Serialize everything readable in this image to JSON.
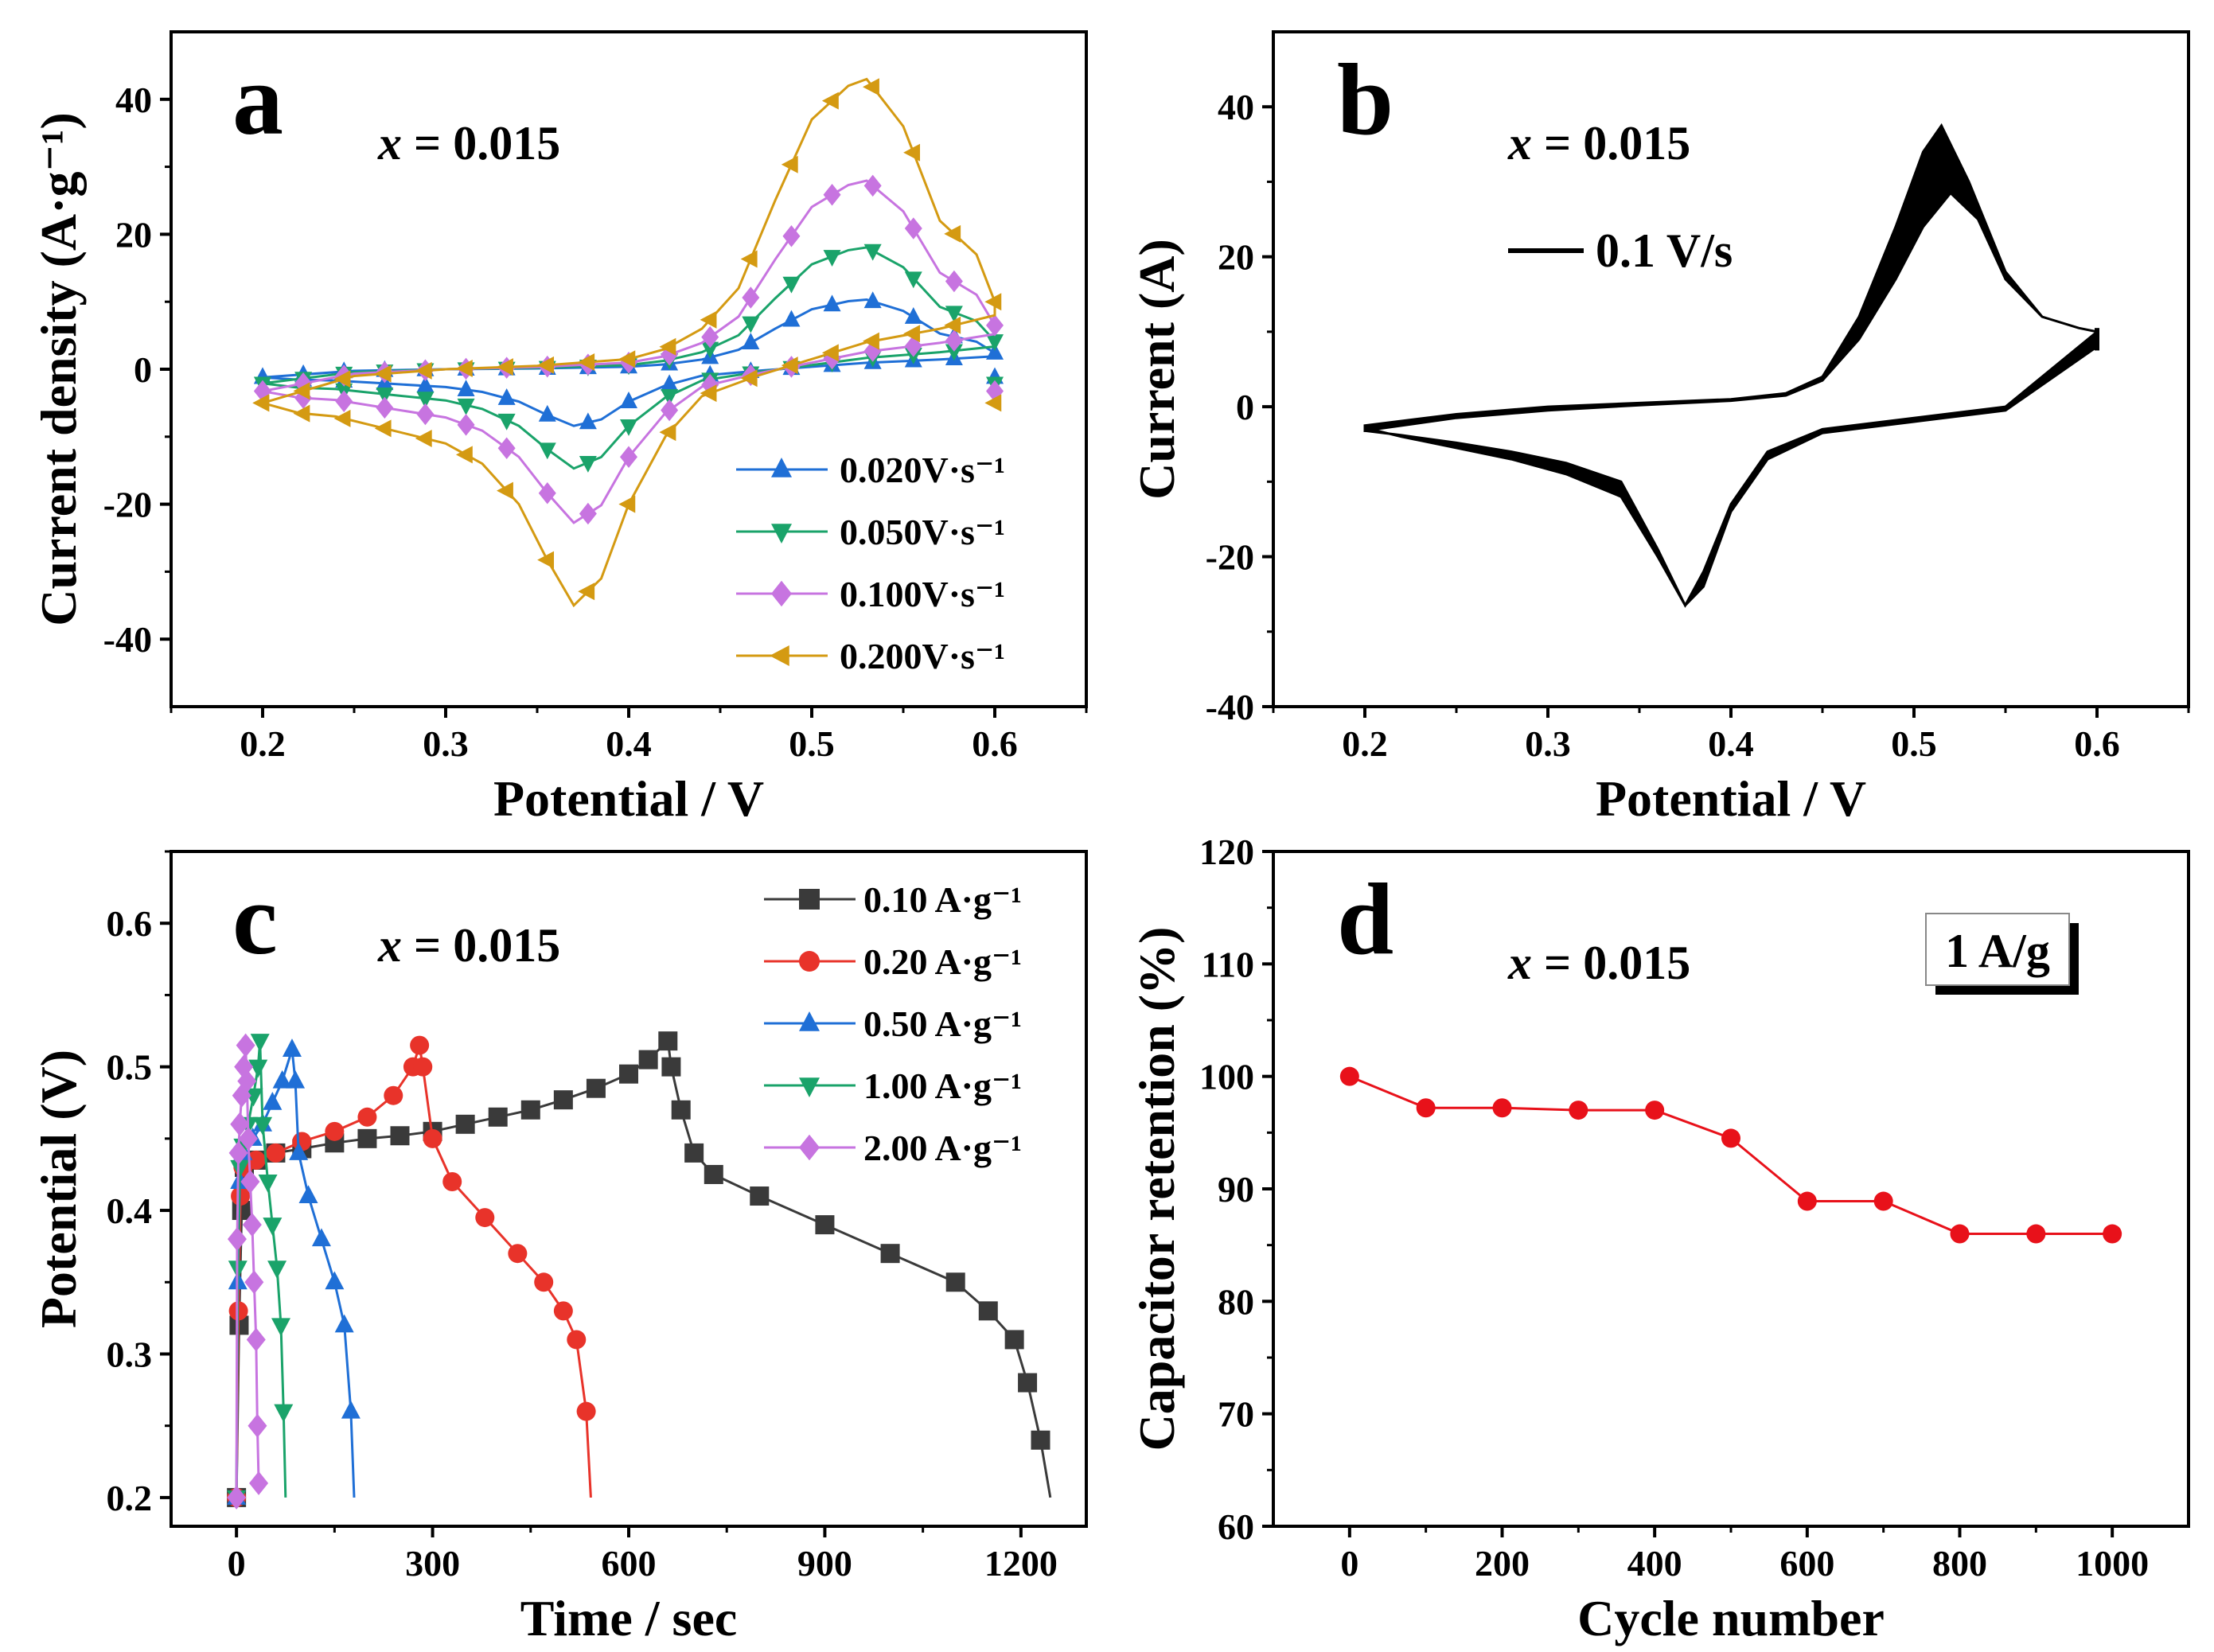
{
  "figure": "four-panel electrochemistry figure",
  "chart_data": [
    {
      "panel": "a",
      "type": "line",
      "annotation": "x = 0.015",
      "annotation_var": "x",
      "annotation_rest": " = 0.015",
      "xlabel": "Potential / V",
      "ylabel": "Current density (A·g⁻¹)",
      "xlim": [
        0.15,
        0.65
      ],
      "ylim": [
        -50,
        50
      ],
      "xticks": [
        0.2,
        0.3,
        0.4,
        0.5,
        0.6
      ],
      "yticks": [
        -40,
        -20,
        0,
        20,
        40
      ],
      "legend_position": "bottom-right",
      "series": [
        {
          "name": "0.020V·s⁻¹",
          "color": "#1f6fd6",
          "marker": "triangle-up",
          "scale": 0.24
        },
        {
          "name": "0.050V·s⁻¹",
          "color": "#1aa36a",
          "marker": "triangle-down",
          "scale": 0.42
        },
        {
          "name": "0.100V·s⁻¹",
          "color": "#c774e0",
          "marker": "diamond",
          "scale": 0.65
        },
        {
          "name": "0.200V·s⁻¹",
          "color": "#d49a12",
          "marker": "triangle-left",
          "scale": 1.0
        }
      ],
      "reference_loop": {
        "anodic": {
          "x": [
            0.2,
            0.25,
            0.3,
            0.35,
            0.4,
            0.42,
            0.44,
            0.46,
            0.48,
            0.5,
            0.52,
            0.53,
            0.55,
            0.57,
            0.59,
            0.6
          ],
          "y": [
            -5,
            -1,
            0,
            0.5,
            1.5,
            3,
            6,
            12,
            25,
            37,
            42,
            43,
            36,
            22,
            17,
            10
          ]
        },
        "cathodic": {
          "x": [
            0.6,
            0.57,
            0.53,
            0.5,
            0.47,
            0.44,
            0.42,
            0.4,
            0.385,
            0.37,
            0.355,
            0.34,
            0.32,
            0.3,
            0.27,
            0.24,
            0.22,
            0.2
          ],
          "y": [
            8,
            6,
            4,
            1.5,
            -1,
            -4,
            -10,
            -20,
            -31,
            -35,
            -28,
            -20,
            -14,
            -11,
            -9,
            -7,
            -6.5,
            -5
          ]
        }
      }
    },
    {
      "panel": "b",
      "type": "line",
      "annotation": "x = 0.015",
      "annotation_var": "x",
      "annotation_rest": " = 0.015",
      "legend_label": "0.1 V/s",
      "xlabel": "Potential / V",
      "ylabel": "Current (A)",
      "xlim": [
        0.15,
        0.65
      ],
      "ylim": [
        -40,
        50
      ],
      "xticks": [
        0.2,
        0.3,
        0.4,
        0.5,
        0.6
      ],
      "yticks": [
        -40,
        -20,
        0,
        20,
        40
      ],
      "series": [
        {
          "name": "upper envelope",
          "anodic_x": [
            0.2,
            0.25,
            0.3,
            0.35,
            0.4,
            0.43,
            0.45,
            0.47,
            0.49,
            0.505,
            0.515,
            0.53,
            0.55,
            0.57,
            0.59,
            0.6
          ],
          "anodic_y": [
            -2.5,
            -1,
            0,
            0.5,
            1,
            1.8,
            4,
            12,
            24,
            34,
            37.5,
            30,
            18,
            12,
            10.5,
            10
          ],
          "cathodic_x": [
            0.6,
            0.55,
            0.5,
            0.45,
            0.42,
            0.4,
            0.385,
            0.375,
            0.36,
            0.34,
            0.31,
            0.28,
            0.25,
            0.22,
            0.2
          ],
          "cathodic_y": [
            10,
            0,
            -1.5,
            -3,
            -6,
            -13,
            -22,
            -26.5,
            -20,
            -12,
            -9,
            -7,
            -5.5,
            -4,
            -2.8
          ]
        },
        {
          "name": "lower envelope",
          "anodic_x": [
            0.2,
            0.25,
            0.3,
            0.35,
            0.4,
            0.43,
            0.45,
            0.47,
            0.49,
            0.505,
            0.52,
            0.535,
            0.55,
            0.57,
            0.59,
            0.6
          ],
          "anodic_y": [
            -3.2,
            -1.5,
            -0.5,
            0.2,
            0.8,
            1.5,
            3.5,
            9,
            17,
            24,
            28.5,
            25,
            17,
            12,
            10.5,
            10
          ],
          "cathodic_x": [
            0.6,
            0.55,
            0.5,
            0.45,
            0.42,
            0.4,
            0.385,
            0.375,
            0.36,
            0.34,
            0.31,
            0.28,
            0.25,
            0.22,
            0.2
          ],
          "cathodic_y": [
            8,
            -0.5,
            -2,
            -3.5,
            -7,
            -14,
            -24,
            -26.5,
            -19,
            -10,
            -7.5,
            -6,
            -4.8,
            -3.8,
            -3.2
          ]
        }
      ]
    },
    {
      "panel": "c",
      "type": "line",
      "annotation": "x = 0.015",
      "annotation_var": "x",
      "annotation_rest": " = 0.015",
      "xlabel": "Time / sec",
      "ylabel": "Potential (V)",
      "xlim": [
        -100,
        1300
      ],
      "ylim": [
        0.18,
        0.65
      ],
      "xticks": [
        0,
        300,
        600,
        900,
        1200
      ],
      "yticks": [
        0.2,
        0.3,
        0.4,
        0.5,
        0.6
      ],
      "legend_position": "top-right",
      "series": [
        {
          "name": "0.10 A·g⁻¹",
          "color": "#3a3a3a",
          "marker": "square",
          "x": [
            0,
            4,
            8,
            12,
            30,
            60,
            100,
            150,
            200,
            250,
            300,
            350,
            400,
            450,
            500,
            550,
            600,
            630,
            660,
            665,
            680,
            700,
            730,
            800,
            900,
            1000,
            1100,
            1150,
            1190,
            1210,
            1230,
            1245
          ],
          "y": [
            0.2,
            0.32,
            0.4,
            0.43,
            0.435,
            0.44,
            0.443,
            0.447,
            0.45,
            0.452,
            0.455,
            0.46,
            0.465,
            0.47,
            0.477,
            0.485,
            0.495,
            0.505,
            0.518,
            0.5,
            0.47,
            0.44,
            0.425,
            0.41,
            0.39,
            0.37,
            0.35,
            0.33,
            0.31,
            0.28,
            0.24,
            0.2
          ]
        },
        {
          "name": "0.20 A·g⁻¹",
          "color": "#e8332a",
          "marker": "circle",
          "x": [
            0,
            3,
            6,
            10,
            30,
            60,
            100,
            150,
            200,
            240,
            270,
            280,
            285,
            300,
            330,
            380,
            430,
            470,
            500,
            520,
            535,
            542
          ],
          "y": [
            0.2,
            0.33,
            0.41,
            0.43,
            0.435,
            0.44,
            0.448,
            0.455,
            0.465,
            0.48,
            0.5,
            0.515,
            0.5,
            0.45,
            0.42,
            0.395,
            0.37,
            0.35,
            0.33,
            0.31,
            0.26,
            0.2
          ]
        },
        {
          "name": "0.50 A·g⁻¹",
          "color": "#1f6fd6",
          "marker": "triangle-up",
          "x": [
            0,
            2,
            5,
            10,
            25,
            40,
            55,
            70,
            85,
            90,
            95,
            110,
            130,
            150,
            165,
            175,
            180
          ],
          "y": [
            0.2,
            0.35,
            0.42,
            0.44,
            0.45,
            0.46,
            0.475,
            0.49,
            0.512,
            0.49,
            0.44,
            0.41,
            0.38,
            0.35,
            0.32,
            0.26,
            0.2
          ]
        },
        {
          "name": "1.00 A·g⁻¹",
          "color": "#1aa36a",
          "marker": "triangle-down",
          "x": [
            0,
            2,
            5,
            10,
            18,
            26,
            33,
            36,
            40,
            48,
            55,
            62,
            68,
            72,
            75
          ],
          "y": [
            0.2,
            0.36,
            0.43,
            0.445,
            0.46,
            0.48,
            0.5,
            0.518,
            0.46,
            0.42,
            0.39,
            0.36,
            0.32,
            0.26,
            0.2
          ]
        },
        {
          "name": "2.00 A·g⁻¹",
          "color": "#c774e0",
          "marker": "diamond",
          "x": [
            0,
            1,
            3,
            5,
            8,
            11,
            14,
            16,
            18,
            21,
            24,
            27,
            30,
            32,
            34
          ],
          "y": [
            0.2,
            0.38,
            0.44,
            0.46,
            0.48,
            0.5,
            0.515,
            0.49,
            0.45,
            0.42,
            0.39,
            0.35,
            0.31,
            0.25,
            0.21
          ]
        }
      ]
    },
    {
      "panel": "d",
      "type": "line",
      "annotation": "x = 0.015",
      "annotation_var": "x",
      "annotation_rest": " = 0.015",
      "box_label": "1 A/g",
      "xlabel": "Cycle number",
      "ylabel": "Capacitor retention (%)",
      "xlim": [
        -100,
        1100
      ],
      "ylim": [
        60,
        120
      ],
      "xticks": [
        0,
        200,
        400,
        600,
        800,
        1000
      ],
      "yticks": [
        60,
        70,
        80,
        90,
        100,
        110,
        120
      ],
      "series": [
        {
          "name": "retention",
          "color": "#e8111a",
          "marker": "circle",
          "x": [
            0,
            100,
            200,
            300,
            400,
            500,
            600,
            700,
            800,
            900,
            1000
          ],
          "y": [
            100,
            97.2,
            97.2,
            97,
            97,
            94.5,
            88.9,
            88.9,
            86,
            86,
            86
          ]
        }
      ]
    }
  ]
}
